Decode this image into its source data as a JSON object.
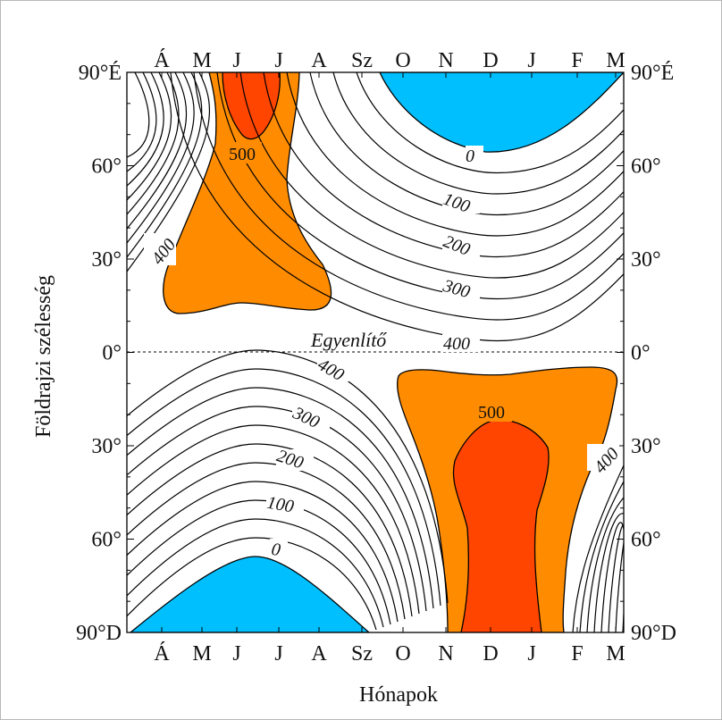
{
  "chart_data": {
    "type": "contour",
    "xlabel": "Hónapok",
    "ylabel": "Földrajzi szélesség",
    "x_months": [
      "Á",
      "M",
      "J",
      "J",
      "A",
      "Sz",
      "O",
      "N",
      "D",
      "J",
      "F",
      "M"
    ],
    "y_ticks": [
      {
        "lat": 90,
        "left": "90°É",
        "right": "90°É"
      },
      {
        "lat": 60,
        "left": "60°",
        "right": "60°"
      },
      {
        "lat": 30,
        "left": "30°",
        "right": "30°"
      },
      {
        "lat": 0,
        "left": "0°",
        "right": "0°"
      },
      {
        "lat": -30,
        "left": "30°",
        "right": "30°"
      },
      {
        "lat": -60,
        "left": "60°",
        "right": "60°"
      },
      {
        "lat": -90,
        "left": "90°D",
        "right": "90°D"
      }
    ],
    "ylim": [
      -90,
      90
    ],
    "equator_label": "Egyenlítő",
    "contour_interval": 50,
    "contour_labels": [
      "0",
      "100",
      "200",
      "300",
      "400",
      "500",
      "0",
      "100",
      "200",
      "300",
      "400",
      "400",
      "500",
      "400"
    ],
    "fill_regions": [
      {
        "name": "below 0 (north)",
        "color": "#00bfff"
      },
      {
        "name": "below 0 (south)",
        "color": "#00bfff"
      },
      {
        "name": "above 500",
        "color": "#ff8c00"
      },
      {
        "name": "above 550",
        "color": "#ff4500"
      }
    ],
    "colors": {
      "cold": "#00bfff",
      "warm": "#ff8c00",
      "hot": "#ff4500"
    }
  }
}
